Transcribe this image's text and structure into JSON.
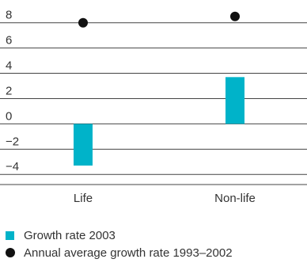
{
  "chart_data": {
    "type": "bar",
    "categories": [
      "Life",
      "Non-life"
    ],
    "series": [
      {
        "name": "Growth rate 2003",
        "values": [
          -3.3,
          3.7
        ],
        "mark": "bar",
        "color": "#00b3c9"
      },
      {
        "name": "Annual average growth rate 1993–2002",
        "values": [
          8.0,
          8.5
        ],
        "mark": "dot",
        "color": "#111111"
      }
    ],
    "yticks": [
      8,
      6,
      4,
      2,
      0,
      -2,
      -4
    ],
    "ytick_labels": [
      "8",
      "6",
      "4",
      "2",
      "0",
      "−2",
      "−4"
    ],
    "ylim": [
      -4.8,
      9.8
    ],
    "grid": true,
    "legend_position": "bottom-left"
  }
}
